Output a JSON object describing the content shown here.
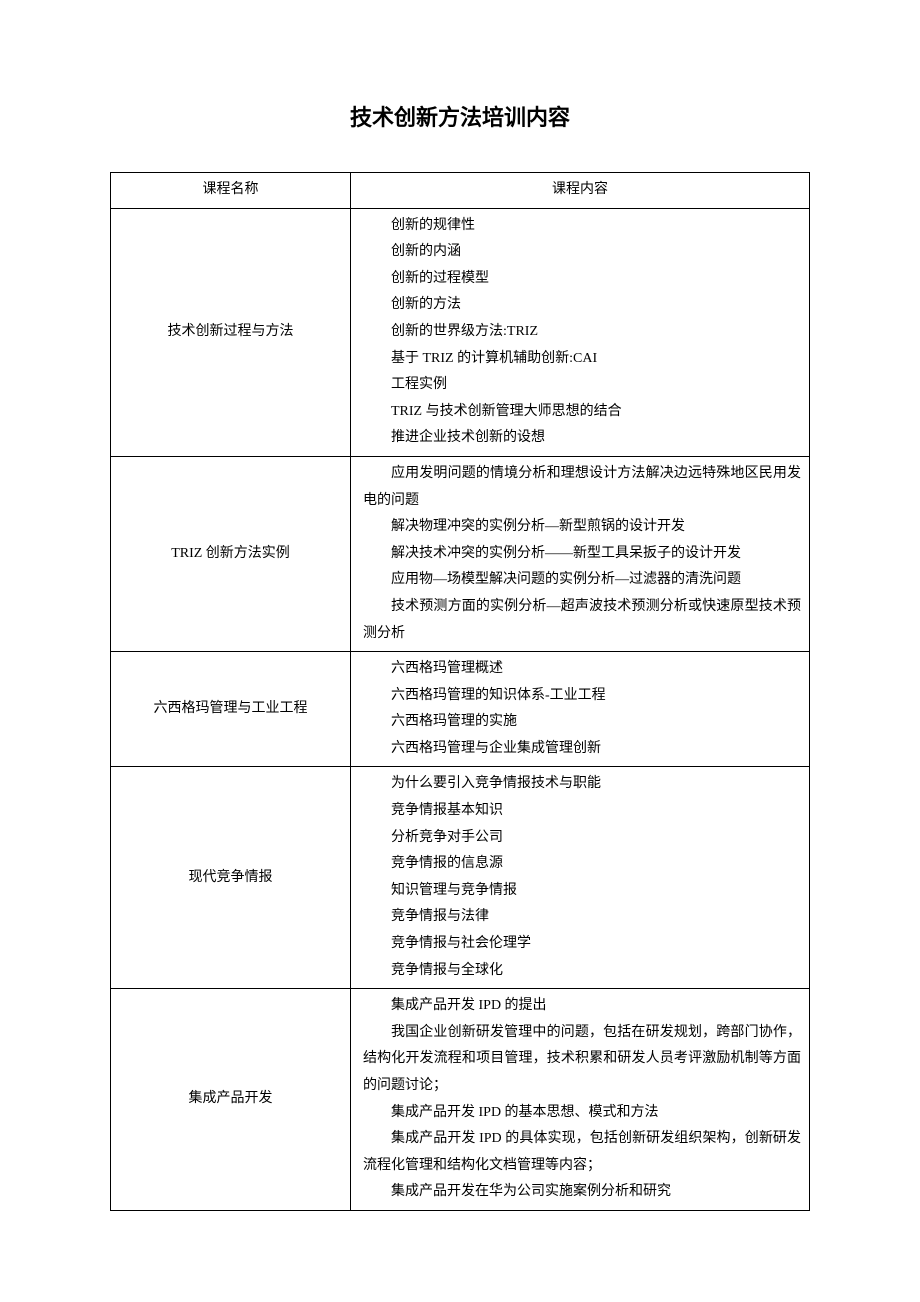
{
  "title": "技术创新方法培训内容",
  "headers": {
    "name": "课程名称",
    "content": "课程内容"
  },
  "rows": [
    {
      "name": "技术创新过程与方法",
      "items": [
        {
          "text": "创新的规律性",
          "wrap": false
        },
        {
          "text": "创新的内涵",
          "wrap": false
        },
        {
          "text": "创新的过程模型",
          "wrap": false
        },
        {
          "text": "创新的方法",
          "wrap": false
        },
        {
          "text": "创新的世界级方法:TRIZ",
          "wrap": false
        },
        {
          "text": "基于 TRIZ 的计算机辅助创新:CAI",
          "wrap": false
        },
        {
          "text": "工程实例",
          "wrap": false
        },
        {
          "text": "TRIZ 与技术创新管理大师思想的结合",
          "wrap": false
        },
        {
          "text": "推进企业技术创新的设想",
          "wrap": false
        }
      ]
    },
    {
      "name": "TRIZ 创新方法实例",
      "items": [
        {
          "text": "应用发明问题的情境分析和理想设计方法解决边远特殊地区民用发电的问题",
          "wrap": true
        },
        {
          "text": "解决物理冲突的实例分析—新型煎锅的设计开发",
          "wrap": false
        },
        {
          "text": "解决技术冲突的实例分析——新型工具呆扳子的设计开发",
          "wrap": false
        },
        {
          "text": "应用物—场模型解决问题的实例分析—过滤器的清洗问题",
          "wrap": false
        },
        {
          "text": "技术预测方面的实例分析—超声波技术预测分析或快速原型技术预测分析",
          "wrap": true
        }
      ]
    },
    {
      "name": "六西格玛管理与工业工程",
      "items": [
        {
          "text": "六西格玛管理概述",
          "wrap": false
        },
        {
          "text": "六西格玛管理的知识体系-工业工程",
          "wrap": false
        },
        {
          "text": "六西格玛管理的实施",
          "wrap": false
        },
        {
          "text": "六西格玛管理与企业集成管理创新",
          "wrap": false
        }
      ]
    },
    {
      "name": "现代竞争情报",
      "items": [
        {
          "text": "为什么要引入竞争情报技术与职能",
          "wrap": false
        },
        {
          "text": "竞争情报基本知识",
          "wrap": false
        },
        {
          "text": "分析竞争对手公司",
          "wrap": false
        },
        {
          "text": "竞争情报的信息源",
          "wrap": false
        },
        {
          "text": "知识管理与竞争情报",
          "wrap": false
        },
        {
          "text": "竞争情报与法律",
          "wrap": false
        },
        {
          "text": "竞争情报与社会伦理学",
          "wrap": false
        },
        {
          "text": "竞争情报与全球化",
          "wrap": false
        }
      ]
    },
    {
      "name": "集成产品开发",
      "items": [
        {
          "text": "集成产品开发 IPD 的提出",
          "wrap": false
        },
        {
          "text": "我国企业创新研发管理中的问题，包括在研发规划，跨部门协作，结构化开发流程和项目管理，技术积累和研发人员考评激励机制等方面的问题讨论；",
          "wrap": true
        },
        {
          "text": "集成产品开发 IPD 的基本思想、模式和方法",
          "wrap": false
        },
        {
          "text": "集成产品开发 IPD 的具体实现，包括创新研发组织架构，创新研发流程化管理和结构化文档管理等内容；",
          "wrap": true
        },
        {
          "text": "集成产品开发在华为公司实施案例分析和研究",
          "wrap": false
        }
      ]
    }
  ]
}
